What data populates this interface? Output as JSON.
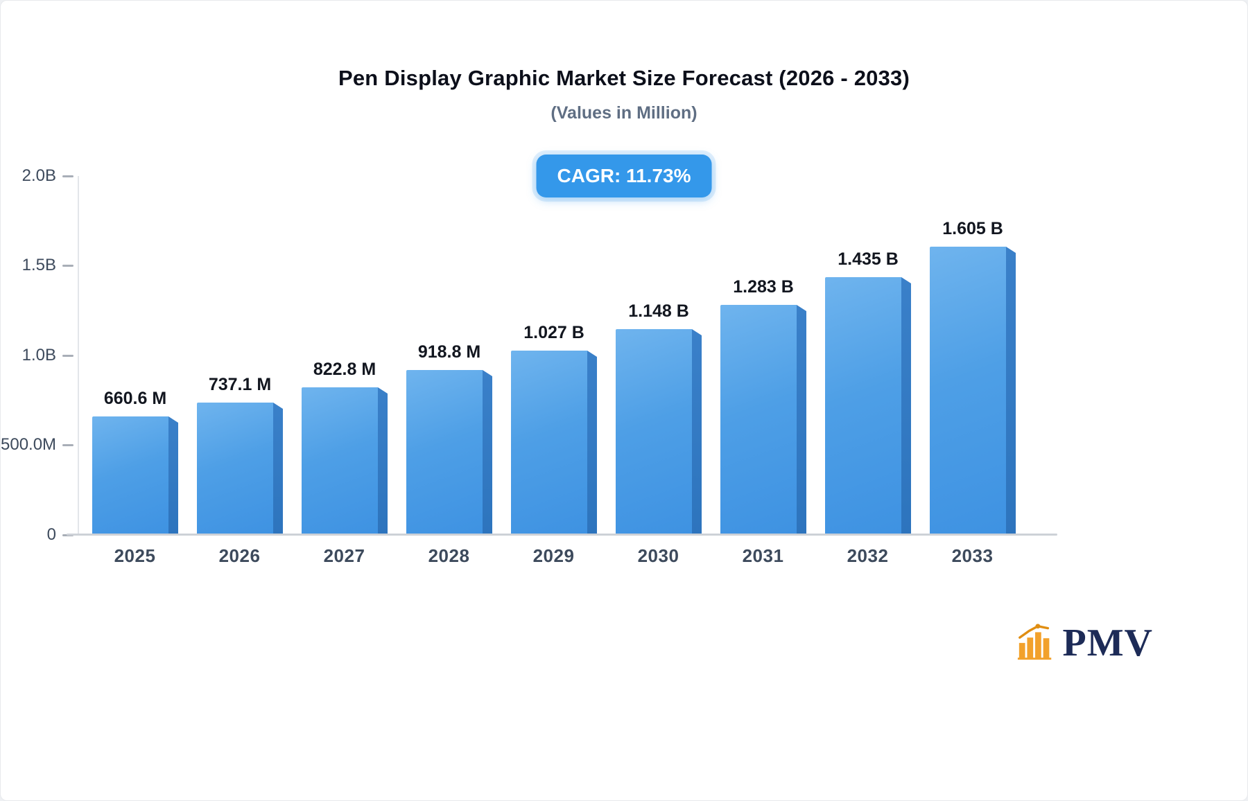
{
  "header": {
    "title": "Pen Display Graphic Market Size Forecast (2026 - 2033)",
    "subtitle": "(Values in Million)"
  },
  "badge": {
    "label": "CAGR: 11.73%"
  },
  "logo": {
    "text": "PMV"
  },
  "chart_data": {
    "type": "bar",
    "title": "Pen Display Graphic Market Size Forecast (2026 - 2033)",
    "subtitle": "(Values in Million)",
    "cagr": "11.73%",
    "categories": [
      "2025",
      "2026",
      "2027",
      "2028",
      "2029",
      "2030",
      "2031",
      "2032",
      "2033"
    ],
    "values_millions": [
      660.6,
      737.1,
      822.8,
      918.8,
      1027,
      1148,
      1283,
      1435,
      1605
    ],
    "bar_labels": [
      "660.6 M",
      "737.1 M",
      "822.8 M",
      "918.8 M",
      "1.027 B",
      "1.148 B",
      "1.283 B",
      "1.435 B",
      "1.605 B"
    ],
    "xlabel": "",
    "ylabel": "",
    "ylim": [
      0,
      2000
    ],
    "grid": false,
    "legend": "none",
    "yticks": [
      {
        "value": 2000,
        "label": "2.0B"
      },
      {
        "value": 1500,
        "label": "1.5B"
      },
      {
        "value": 1000,
        "label": "1.0B"
      },
      {
        "value": 500,
        "label": "500.0M"
      },
      {
        "value": 0,
        "label": "0"
      }
    ],
    "colors": {
      "bar_face_top": "#6fb4ee",
      "bar_face_bottom": "#3e92e2",
      "bar_side": "#2d74bd",
      "badge_bg": "#3498ea",
      "axis_line": "#cdd1d7",
      "tick_label": "#3d4a5c",
      "value_label": "#12161f",
      "logo_orange": "#f2a12c",
      "logo_navy": "#1d2b57"
    }
  }
}
